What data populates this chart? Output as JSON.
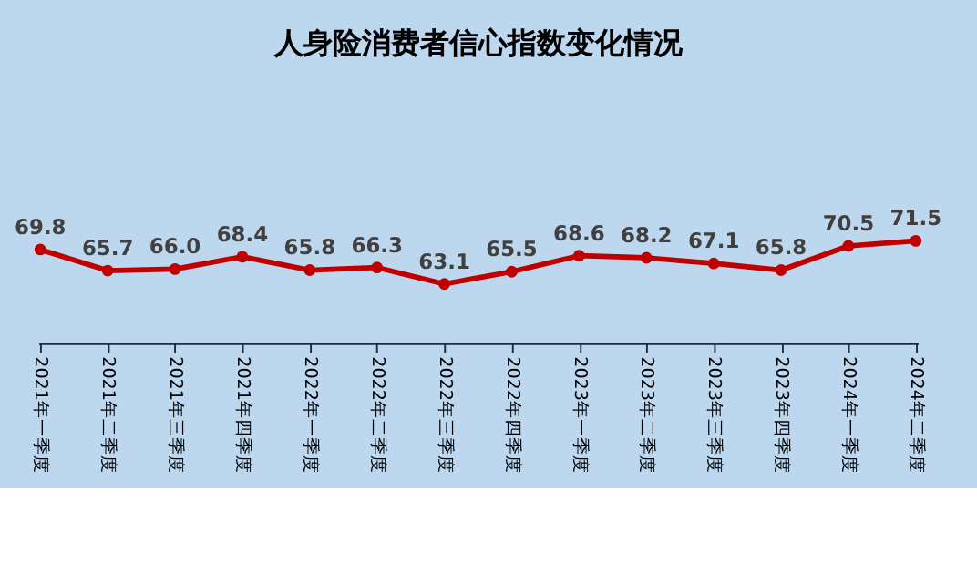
{
  "chart_data": {
    "type": "line",
    "title": "人身险消费者信心指数变化情况",
    "categories": [
      "2021年一季度",
      "2021年二季度",
      "2021年三季度",
      "2021年四季度",
      "2022年一季度",
      "2022年二季度",
      "2022年三季度",
      "2022年四季度",
      "2023年一季度",
      "2023年二季度",
      "2023年三季度",
      "2023年四季度",
      "2024年一季度",
      "2024年二季度"
    ],
    "series": [
      {
        "color": "#c00000",
        "values": [
          69.8,
          65.7,
          66.0,
          68.4,
          65.8,
          66.3,
          63.1,
          65.5,
          68.6,
          68.2,
          67.1,
          65.8,
          70.5,
          71.5
        ],
        "value_labels": [
          "69.8",
          "65.7",
          "66.0",
          "68.4",
          "65.8",
          "66.3",
          "63.1",
          "65.5",
          "68.6",
          "68.2",
          "67.1",
          "65.8",
          "70.5",
          "71.5"
        ]
      }
    ],
    "marker": "circle",
    "grid": false,
    "tick_labels": "x"
  }
}
